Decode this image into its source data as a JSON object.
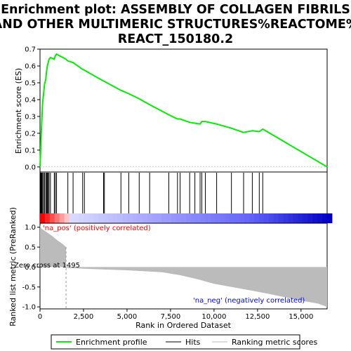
{
  "title_line1": "Enrichment plot: ASSEMBLY OF COLLAGEN FIBRILS",
  "title_line2": "AND OTHER MULTIMERIC STRUCTURES%REACTOME%",
  "title_line3": "REACT_150180.2",
  "ylabel_top": "Enrichment score (ES)",
  "ylabel_bottom": "Ranked list metric (PreRanked)",
  "xlabel": "Rank in Ordered Dataset",
  "annotations": {
    "pos": "'na_pos' (positively correlated)",
    "neg": "'na_neg' (negatively correlated)",
    "zero_cross": "Zero cross at 1495"
  },
  "legend": {
    "enrichment": "Enrichment profile",
    "hits": "Hits",
    "ranking": "Ranking metric scores"
  },
  "colors": {
    "enrichment": "#00ee00",
    "pos_text": "#ff0000",
    "neg_text": "#0000ff",
    "metric_fill": "#bbbbbb"
  },
  "chart_data": {
    "type": "line",
    "n_genes": 16500,
    "zero_cross": 1495,
    "es_ticks": [
      "0.0",
      "0.1",
      "0.2",
      "0.3",
      "0.4",
      "0.5",
      "0.6",
      "0.7"
    ],
    "es_tick_values": [
      0,
      0.1,
      0.2,
      0.3,
      0.4,
      0.5,
      0.6,
      0.7
    ],
    "metric_ticks": [
      "1.0",
      "0.5",
      "0.0",
      "-0.5",
      "-1.0"
    ],
    "metric_tick_values": [
      1,
      0.5,
      0,
      -0.5,
      -1
    ],
    "x_ticks": [
      "0",
      "2,500",
      "5,000",
      "7,500",
      "10,000",
      "12,500",
      "15,000"
    ],
    "x_tick_values": [
      0,
      2500,
      5000,
      7500,
      10000,
      12500,
      15000
    ],
    "es_ylim": [
      -0.03,
      0.7
    ],
    "metric_ylim": [
      -1.05,
      1.1
    ],
    "hits": [
      20,
      60,
      100,
      150,
      200,
      260,
      330,
      380,
      420,
      470,
      520,
      600,
      820,
      880,
      950,
      1600,
      1900,
      2450,
      2550,
      3650,
      3700,
      4650,
      5100,
      5700,
      6300,
      7400,
      7900,
      8050,
      8600,
      8900,
      9200,
      9300,
      9500,
      10150,
      11000,
      11700,
      12200,
      12600,
      12800
    ],
    "es_profile": [
      [
        0,
        0
      ],
      [
        20,
        0.05
      ],
      [
        60,
        0.17
      ],
      [
        100,
        0.27
      ],
      [
        150,
        0.38
      ],
      [
        200,
        0.43
      ],
      [
        260,
        0.49
      ],
      [
        330,
        0.52
      ],
      [
        380,
        0.57
      ],
      [
        420,
        0.6
      ],
      [
        470,
        0.62
      ],
      [
        520,
        0.64
      ],
      [
        600,
        0.65
      ],
      [
        820,
        0.64
      ],
      [
        880,
        0.66
      ],
      [
        950,
        0.67
      ],
      [
        1495,
        0.64
      ],
      [
        1600,
        0.63
      ],
      [
        1900,
        0.62
      ],
      [
        2450,
        0.58
      ],
      [
        2550,
        0.575
      ],
      [
        3650,
        0.51
      ],
      [
        3700,
        0.508
      ],
      [
        4650,
        0.455
      ],
      [
        5100,
        0.435
      ],
      [
        5700,
        0.405
      ],
      [
        6300,
        0.37
      ],
      [
        7400,
        0.31
      ],
      [
        7900,
        0.285
      ],
      [
        8050,
        0.285
      ],
      [
        8600,
        0.265
      ],
      [
        8900,
        0.26
      ],
      [
        9200,
        0.255
      ],
      [
        9300,
        0.27
      ],
      [
        9500,
        0.27
      ],
      [
        10150,
        0.255
      ],
      [
        11000,
        0.23
      ],
      [
        11700,
        0.205
      ],
      [
        12200,
        0.215
      ],
      [
        12600,
        0.21
      ],
      [
        12800,
        0.225
      ],
      [
        16500,
        0
      ]
    ],
    "metric_profile": [
      [
        0,
        1.05
      ],
      [
        80,
        0.96
      ],
      [
        300,
        0.9
      ],
      [
        700,
        0.78
      ],
      [
        1000,
        0.67
      ],
      [
        1300,
        0.58
      ],
      [
        1495,
        0.5
      ],
      [
        1496,
        -0.02
      ],
      [
        3000,
        -0.05
      ],
      [
        5000,
        -0.08
      ],
      [
        7000,
        -0.13
      ],
      [
        8000,
        -0.2
      ],
      [
        9000,
        -0.3
      ],
      [
        10000,
        -0.42
      ],
      [
        11000,
        -0.5
      ],
      [
        12000,
        -0.58
      ],
      [
        13000,
        -0.66
      ],
      [
        14000,
        -0.75
      ],
      [
        15000,
        -0.84
      ],
      [
        16000,
        -0.92
      ],
      [
        16500,
        -1.0
      ]
    ]
  }
}
